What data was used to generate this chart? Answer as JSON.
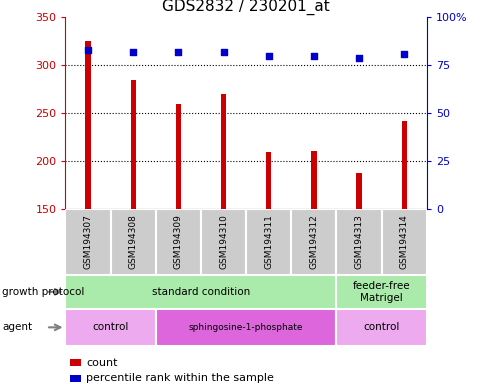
{
  "title": "GDS2832 / 230201_at",
  "samples": [
    "GSM194307",
    "GSM194308",
    "GSM194309",
    "GSM194310",
    "GSM194311",
    "GSM194312",
    "GSM194313",
    "GSM194314"
  ],
  "counts": [
    325,
    285,
    260,
    270,
    210,
    211,
    188,
    242
  ],
  "percentile_ranks": [
    83,
    82,
    82,
    82,
    80,
    80,
    79,
    81
  ],
  "ylim_left": [
    150,
    350
  ],
  "ylim_right": [
    0,
    100
  ],
  "yticks_left": [
    150,
    200,
    250,
    300,
    350
  ],
  "yticks_right": [
    0,
    25,
    50,
    75,
    100
  ],
  "bar_color": "#cc0000",
  "dot_color": "#0000cc",
  "growth_protocol_groups": [
    {
      "label": "standard condition",
      "start": 0,
      "end": 6,
      "color": "#aaeaaa"
    },
    {
      "label": "feeder-free\nMatrigel",
      "start": 6,
      "end": 8,
      "color": "#aaeaaa"
    }
  ],
  "agent_groups": [
    {
      "label": "control",
      "start": 0,
      "end": 2,
      "color": "#eeaaee"
    },
    {
      "label": "sphingosine-1-phosphate",
      "start": 2,
      "end": 6,
      "color": "#dd66dd"
    },
    {
      "label": "control",
      "start": 6,
      "end": 8,
      "color": "#eeaaee"
    }
  ],
  "legend_count_color": "#cc0000",
  "legend_dot_color": "#0000cc",
  "sample_box_color": "#cccccc",
  "left_tick_color": "#cc0000",
  "right_tick_color": "#0000cc",
  "bar_width": 0.12
}
